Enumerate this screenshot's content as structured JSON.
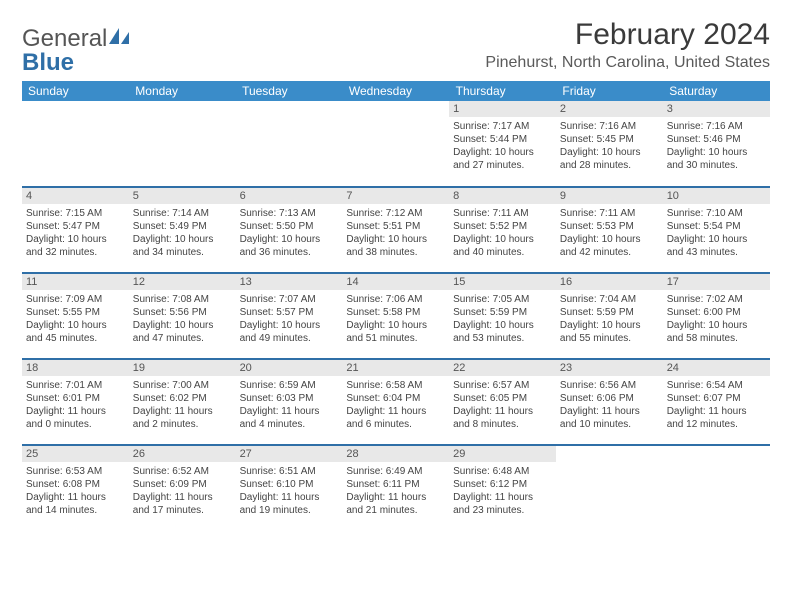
{
  "brand": {
    "part1": "General",
    "part2": "Blue"
  },
  "title": "February 2024",
  "location": "Pinehurst, North Carolina, United States",
  "colors": {
    "header_bg": "#3a8cc9",
    "row_border": "#2f6fa7",
    "daynum_bg": "#e8e8e8"
  },
  "day_headers": [
    "Sunday",
    "Monday",
    "Tuesday",
    "Wednesday",
    "Thursday",
    "Friday",
    "Saturday"
  ],
  "weeks": [
    [
      null,
      null,
      null,
      null,
      {
        "n": "1",
        "sunrise": "Sunrise: 7:17 AM",
        "sunset": "Sunset: 5:44 PM",
        "daylight1": "Daylight: 10 hours",
        "daylight2": "and 27 minutes."
      },
      {
        "n": "2",
        "sunrise": "Sunrise: 7:16 AM",
        "sunset": "Sunset: 5:45 PM",
        "daylight1": "Daylight: 10 hours",
        "daylight2": "and 28 minutes."
      },
      {
        "n": "3",
        "sunrise": "Sunrise: 7:16 AM",
        "sunset": "Sunset: 5:46 PM",
        "daylight1": "Daylight: 10 hours",
        "daylight2": "and 30 minutes."
      }
    ],
    [
      {
        "n": "4",
        "sunrise": "Sunrise: 7:15 AM",
        "sunset": "Sunset: 5:47 PM",
        "daylight1": "Daylight: 10 hours",
        "daylight2": "and 32 minutes."
      },
      {
        "n": "5",
        "sunrise": "Sunrise: 7:14 AM",
        "sunset": "Sunset: 5:49 PM",
        "daylight1": "Daylight: 10 hours",
        "daylight2": "and 34 minutes."
      },
      {
        "n": "6",
        "sunrise": "Sunrise: 7:13 AM",
        "sunset": "Sunset: 5:50 PM",
        "daylight1": "Daylight: 10 hours",
        "daylight2": "and 36 minutes."
      },
      {
        "n": "7",
        "sunrise": "Sunrise: 7:12 AM",
        "sunset": "Sunset: 5:51 PM",
        "daylight1": "Daylight: 10 hours",
        "daylight2": "and 38 minutes."
      },
      {
        "n": "8",
        "sunrise": "Sunrise: 7:11 AM",
        "sunset": "Sunset: 5:52 PM",
        "daylight1": "Daylight: 10 hours",
        "daylight2": "and 40 minutes."
      },
      {
        "n": "9",
        "sunrise": "Sunrise: 7:11 AM",
        "sunset": "Sunset: 5:53 PM",
        "daylight1": "Daylight: 10 hours",
        "daylight2": "and 42 minutes."
      },
      {
        "n": "10",
        "sunrise": "Sunrise: 7:10 AM",
        "sunset": "Sunset: 5:54 PM",
        "daylight1": "Daylight: 10 hours",
        "daylight2": "and 43 minutes."
      }
    ],
    [
      {
        "n": "11",
        "sunrise": "Sunrise: 7:09 AM",
        "sunset": "Sunset: 5:55 PM",
        "daylight1": "Daylight: 10 hours",
        "daylight2": "and 45 minutes."
      },
      {
        "n": "12",
        "sunrise": "Sunrise: 7:08 AM",
        "sunset": "Sunset: 5:56 PM",
        "daylight1": "Daylight: 10 hours",
        "daylight2": "and 47 minutes."
      },
      {
        "n": "13",
        "sunrise": "Sunrise: 7:07 AM",
        "sunset": "Sunset: 5:57 PM",
        "daylight1": "Daylight: 10 hours",
        "daylight2": "and 49 minutes."
      },
      {
        "n": "14",
        "sunrise": "Sunrise: 7:06 AM",
        "sunset": "Sunset: 5:58 PM",
        "daylight1": "Daylight: 10 hours",
        "daylight2": "and 51 minutes."
      },
      {
        "n": "15",
        "sunrise": "Sunrise: 7:05 AM",
        "sunset": "Sunset: 5:59 PM",
        "daylight1": "Daylight: 10 hours",
        "daylight2": "and 53 minutes."
      },
      {
        "n": "16",
        "sunrise": "Sunrise: 7:04 AM",
        "sunset": "Sunset: 5:59 PM",
        "daylight1": "Daylight: 10 hours",
        "daylight2": "and 55 minutes."
      },
      {
        "n": "17",
        "sunrise": "Sunrise: 7:02 AM",
        "sunset": "Sunset: 6:00 PM",
        "daylight1": "Daylight: 10 hours",
        "daylight2": "and 58 minutes."
      }
    ],
    [
      {
        "n": "18",
        "sunrise": "Sunrise: 7:01 AM",
        "sunset": "Sunset: 6:01 PM",
        "daylight1": "Daylight: 11 hours",
        "daylight2": "and 0 minutes."
      },
      {
        "n": "19",
        "sunrise": "Sunrise: 7:00 AM",
        "sunset": "Sunset: 6:02 PM",
        "daylight1": "Daylight: 11 hours",
        "daylight2": "and 2 minutes."
      },
      {
        "n": "20",
        "sunrise": "Sunrise: 6:59 AM",
        "sunset": "Sunset: 6:03 PM",
        "daylight1": "Daylight: 11 hours",
        "daylight2": "and 4 minutes."
      },
      {
        "n": "21",
        "sunrise": "Sunrise: 6:58 AM",
        "sunset": "Sunset: 6:04 PM",
        "daylight1": "Daylight: 11 hours",
        "daylight2": "and 6 minutes."
      },
      {
        "n": "22",
        "sunrise": "Sunrise: 6:57 AM",
        "sunset": "Sunset: 6:05 PM",
        "daylight1": "Daylight: 11 hours",
        "daylight2": "and 8 minutes."
      },
      {
        "n": "23",
        "sunrise": "Sunrise: 6:56 AM",
        "sunset": "Sunset: 6:06 PM",
        "daylight1": "Daylight: 11 hours",
        "daylight2": "and 10 minutes."
      },
      {
        "n": "24",
        "sunrise": "Sunrise: 6:54 AM",
        "sunset": "Sunset: 6:07 PM",
        "daylight1": "Daylight: 11 hours",
        "daylight2": "and 12 minutes."
      }
    ],
    [
      {
        "n": "25",
        "sunrise": "Sunrise: 6:53 AM",
        "sunset": "Sunset: 6:08 PM",
        "daylight1": "Daylight: 11 hours",
        "daylight2": "and 14 minutes."
      },
      {
        "n": "26",
        "sunrise": "Sunrise: 6:52 AM",
        "sunset": "Sunset: 6:09 PM",
        "daylight1": "Daylight: 11 hours",
        "daylight2": "and 17 minutes."
      },
      {
        "n": "27",
        "sunrise": "Sunrise: 6:51 AM",
        "sunset": "Sunset: 6:10 PM",
        "daylight1": "Daylight: 11 hours",
        "daylight2": "and 19 minutes."
      },
      {
        "n": "28",
        "sunrise": "Sunrise: 6:49 AM",
        "sunset": "Sunset: 6:11 PM",
        "daylight1": "Daylight: 11 hours",
        "daylight2": "and 21 minutes."
      },
      {
        "n": "29",
        "sunrise": "Sunrise: 6:48 AM",
        "sunset": "Sunset: 6:12 PM",
        "daylight1": "Daylight: 11 hours",
        "daylight2": "and 23 minutes."
      },
      null,
      null
    ]
  ]
}
